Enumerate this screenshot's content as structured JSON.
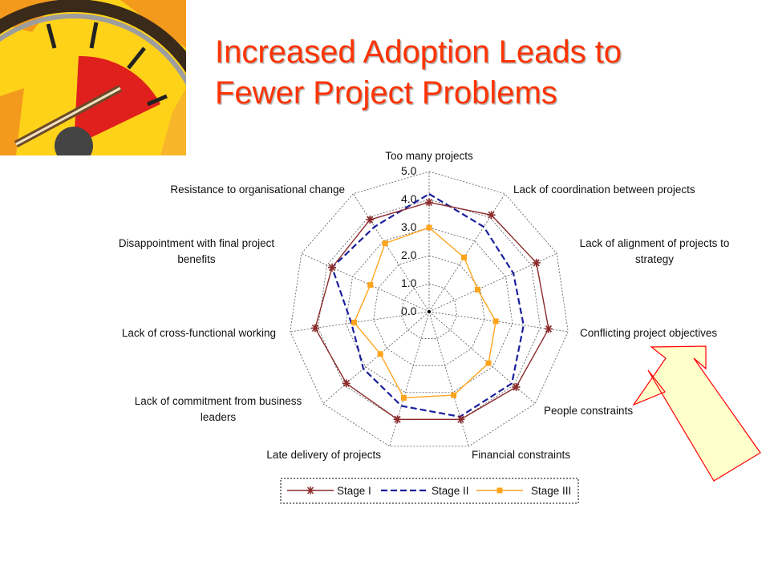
{
  "slide": {
    "title_line1": "Increased Adoption Leads to",
    "title_line2": "Fewer Project Problems",
    "decoration": "speedometer-gauge-icon",
    "callout": "arrow-pointing-to-conflicting-project-objectives"
  },
  "colors": {
    "title": "#ff3300",
    "stage1": "#8b2a2a",
    "stage2": "#1a1f9c",
    "stage3": "#ffa41c",
    "arrow_fill": "#ffffcc",
    "arrow_stroke": "#ff0000"
  },
  "chart_data": {
    "type": "radar",
    "title": "",
    "categories": [
      "Too many projects",
      "Lack of coordination between projects",
      "Lack of alignment of projects to strategy",
      "Conflicting project objectives",
      "People constraints",
      "Financial constraints",
      "Late delivery of projects",
      "Lack of commitment from business leaders",
      "Lack of cross-functional working",
      "Disappointment with final project benefits",
      "Resistance to organisational change"
    ],
    "axis_ticks": [
      "0.0",
      "1.0",
      "2.0",
      "3.0",
      "4.0",
      "5.0"
    ],
    "range": [
      0,
      5
    ],
    "grid": true,
    "legend_position": "bottom",
    "series": [
      {
        "name": "Stage I",
        "marker": "star",
        "line": "solid",
        "values": [
          3.9,
          4.1,
          4.2,
          4.3,
          4.1,
          4.0,
          4.0,
          3.9,
          4.1,
          3.8,
          3.9
        ]
      },
      {
        "name": "Stage II",
        "marker": "none",
        "line": "dashed",
        "values": [
          4.2,
          3.6,
          3.3,
          3.4,
          3.9,
          3.9,
          3.5,
          3.1,
          2.8,
          3.8,
          3.6
        ]
      },
      {
        "name": "Stage III",
        "marker": "square",
        "line": "solid",
        "values": [
          3.0,
          2.3,
          1.9,
          2.4,
          2.8,
          3.1,
          3.2,
          2.3,
          2.7,
          2.3,
          2.9
        ]
      }
    ]
  }
}
